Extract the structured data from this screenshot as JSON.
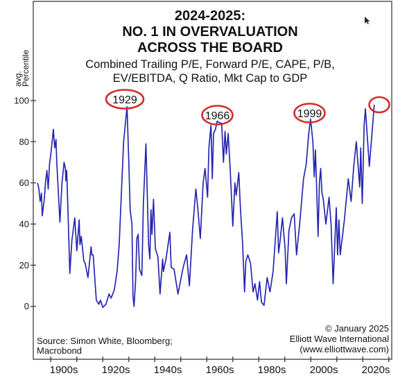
{
  "chart_data": {
    "type": "line",
    "title": [
      "2024-2025:",
      "NO. 1 IN OVERVALUATION",
      "ACROSS THE BOARD"
    ],
    "subtitle": [
      "Combined Trailing P/E, Forward P/E, CAPE, P/B,",
      "EV/EBITDA, Q Ratio, Mkt Cap to GDP"
    ],
    "ylabel": [
      "avg.",
      "Percentile"
    ],
    "xlabel": "",
    "ylim": [
      -20,
      100
    ],
    "xlim": [
      1893.3,
      2031
    ],
    "y_ticks": [
      0,
      20,
      40,
      60,
      80,
      100
    ],
    "x_ticks": [
      1900,
      1910,
      1920,
      1930,
      1940,
      1950,
      1960,
      1970,
      1980,
      1990,
      2000,
      2010,
      2020,
      2030
    ],
    "x_tick_labels": [
      {
        "label": "1900s",
        "decade": 1900
      },
      {
        "label": "1920s",
        "decade": 1920
      },
      {
        "label": "1940s",
        "decade": 1940
      },
      {
        "label": "1960s",
        "decade": 1960
      },
      {
        "label": "1980s",
        "decade": 1980
      },
      {
        "label": "2000s",
        "decade": 2000
      },
      {
        "label": "2020s",
        "decade": 2020
      }
    ],
    "grid": false,
    "line_color": "#2626b0",
    "annotation_color": "#d42a2a",
    "annotations": [
      {
        "label": "1929",
        "year": 1929.3,
        "value": 97
      },
      {
        "label": "1966",
        "year": 1965.5,
        "value": 89
      },
      {
        "label": "1999",
        "year": 1999.9,
        "value": 91
      },
      {
        "label": "",
        "year": 2024.4,
        "value": 98
      }
    ],
    "series": [
      {
        "points": [
          [
            1894.9,
            60
          ],
          [
            1895.4,
            57
          ],
          [
            1895.9,
            51
          ],
          [
            1896.4,
            55
          ],
          [
            1896.7,
            44
          ],
          [
            1897.5,
            52
          ],
          [
            1898.0,
            61
          ],
          [
            1898.5,
            66
          ],
          [
            1899.0,
            57
          ],
          [
            1899.5,
            69
          ],
          [
            1900.0,
            74
          ],
          [
            1900.5,
            80
          ],
          [
            1901.0,
            86
          ],
          [
            1901.5,
            77
          ],
          [
            1902.0,
            81
          ],
          [
            1902.3,
            70
          ],
          [
            1902.9,
            55
          ],
          [
            1903.5,
            41
          ],
          [
            1904.3,
            60
          ],
          [
            1905.1,
            70
          ],
          [
            1905.6,
            67
          ],
          [
            1905.8,
            61
          ],
          [
            1906.1,
            66
          ],
          [
            1906.6,
            47
          ],
          [
            1907.3,
            16
          ],
          [
            1908.1,
            32
          ],
          [
            1909.2,
            43
          ],
          [
            1910.0,
            27
          ],
          [
            1910.9,
            42
          ],
          [
            1911.2,
            30
          ],
          [
            1911.7,
            34
          ],
          [
            1912.7,
            22
          ],
          [
            1913.2,
            21
          ],
          [
            1914.3,
            14
          ],
          [
            1915.5,
            29
          ],
          [
            1915.8,
            25
          ],
          [
            1916.3,
            25
          ],
          [
            1917.5,
            3
          ],
          [
            1918.5,
            1
          ],
          [
            1919.1,
            3
          ],
          [
            1920.0,
            -0.5
          ],
          [
            1921.2,
            1
          ],
          [
            1922.4,
            6
          ],
          [
            1923.2,
            4
          ],
          [
            1924.4,
            8
          ],
          [
            1925.5,
            17
          ],
          [
            1926.3,
            30
          ],
          [
            1927.3,
            60
          ],
          [
            1928.0,
            80
          ],
          [
            1929.3,
            97
          ],
          [
            1930.0,
            70
          ],
          [
            1930.5,
            47
          ],
          [
            1931.2,
            40
          ],
          [
            1931.6,
            5
          ],
          [
            1932.0,
            0
          ],
          [
            1932.6,
            12
          ],
          [
            1933.1,
            33
          ],
          [
            1933.6,
            35
          ],
          [
            1934.1,
            18
          ],
          [
            1935.0,
            15
          ],
          [
            1935.6,
            50
          ],
          [
            1936.6,
            79
          ],
          [
            1937.6,
            30
          ],
          [
            1938.1,
            23
          ],
          [
            1938.5,
            47
          ],
          [
            1938.9,
            35
          ],
          [
            1939.5,
            52
          ],
          [
            1940.2,
            28
          ],
          [
            1941.2,
            24
          ],
          [
            1942.0,
            6
          ],
          [
            1943.0,
            23
          ],
          [
            1943.3,
            17
          ],
          [
            1944.3,
            23
          ],
          [
            1945.8,
            36
          ],
          [
            1946.3,
            19
          ],
          [
            1947.4,
            18
          ],
          [
            1948.9,
            6
          ],
          [
            1950.9,
            19
          ],
          [
            1952.2,
            25
          ],
          [
            1953.3,
            10
          ],
          [
            1954.5,
            37
          ],
          [
            1955.8,
            57
          ],
          [
            1956.5,
            48
          ],
          [
            1957.5,
            33
          ],
          [
            1958.6,
            60
          ],
          [
            1959.3,
            67
          ],
          [
            1960.3,
            53
          ],
          [
            1960.8,
            77
          ],
          [
            1961.6,
            88
          ],
          [
            1962.1,
            62
          ],
          [
            1962.6,
            84
          ],
          [
            1963.3,
            86
          ],
          [
            1964.0,
            90
          ],
          [
            1965.2,
            89
          ],
          [
            1965.7,
            89
          ],
          [
            1966.4,
            70
          ],
          [
            1967.0,
            85
          ],
          [
            1967.5,
            74
          ],
          [
            1968.2,
            84
          ],
          [
            1969.0,
            66
          ],
          [
            1970.0,
            39
          ],
          [
            1970.8,
            60
          ],
          [
            1971.3,
            54
          ],
          [
            1972.3,
            65
          ],
          [
            1972.9,
            48
          ],
          [
            1973.8,
            30
          ],
          [
            1974.5,
            7
          ],
          [
            1975.0,
            22
          ],
          [
            1975.8,
            25
          ],
          [
            1976.8,
            21
          ],
          [
            1977.8,
            7
          ],
          [
            1978.5,
            11
          ],
          [
            1979.5,
            3
          ],
          [
            1980.3,
            12
          ],
          [
            1981.0,
            2
          ],
          [
            1982.0,
            0.5
          ],
          [
            1983.2,
            14
          ],
          [
            1984.3,
            7
          ],
          [
            1985.5,
            17
          ],
          [
            1987.1,
            46
          ],
          [
            1987.6,
            26
          ],
          [
            1988.1,
            31
          ],
          [
            1989.1,
            43
          ],
          [
            1990.1,
            28
          ],
          [
            1990.6,
            11
          ],
          [
            1991.6,
            37
          ],
          [
            1992.6,
            43
          ],
          [
            1993.6,
            45
          ],
          [
            1994.5,
            25
          ],
          [
            1995.7,
            40
          ],
          [
            1997.2,
            62
          ],
          [
            1998.2,
            69
          ],
          [
            1999.2,
            84
          ],
          [
            1999.9,
            91
          ],
          [
            2000.8,
            80
          ],
          [
            2001.3,
            63
          ],
          [
            2001.8,
            76
          ],
          [
            2002.8,
            34
          ],
          [
            2003.3,
            60
          ],
          [
            2003.8,
            67
          ],
          [
            2004.3,
            55
          ],
          [
            2004.8,
            52
          ],
          [
            2005.8,
            40
          ],
          [
            2007.0,
            53
          ],
          [
            2007.8,
            40
          ],
          [
            2008.6,
            11
          ],
          [
            2009.8,
            48
          ],
          [
            2010.3,
            25
          ],
          [
            2010.8,
            42
          ],
          [
            2011.3,
            25
          ],
          [
            2012.9,
            42
          ],
          [
            2014.4,
            62
          ],
          [
            2015.5,
            51
          ],
          [
            2016.5,
            68
          ],
          [
            2017.5,
            80
          ],
          [
            2018.8,
            58
          ],
          [
            2019.2,
            77
          ],
          [
            2019.8,
            50
          ],
          [
            2020.5,
            88
          ],
          [
            2021.0,
            96
          ],
          [
            2022.5,
            68
          ],
          [
            2024.4,
            98
          ]
        ]
      }
    ],
    "source": [
      "Source: Simon White, Bloomberg;",
      "Macrobond"
    ],
    "credit": [
      "© January 2025",
      "Elliott Wave International",
      "(www.elliottwave.com)"
    ]
  }
}
